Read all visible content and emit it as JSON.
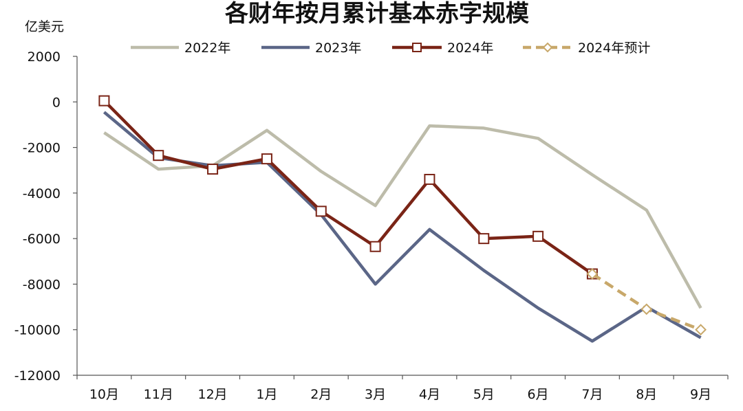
{
  "chart_data": {
    "type": "line",
    "title": "各财年按月累计基本赤字规模",
    "unit_label": "亿美元",
    "categories": [
      "10月",
      "11月",
      "12月",
      "1月",
      "2月",
      "3月",
      "4月",
      "5月",
      "6月",
      "7月",
      "8月",
      "9月"
    ],
    "y_ticks": [
      "2000",
      "0",
      "-2000",
      "-4000",
      "-6000",
      "-8000",
      "-10000",
      "-12000"
    ],
    "ylim": [
      -12000,
      2000
    ],
    "y_tick_values": [
      2000,
      0,
      -2000,
      -4000,
      -6000,
      -8000,
      -10000,
      -12000
    ],
    "grid": false,
    "legend_position": "top",
    "series": [
      {
        "name": "2022年",
        "color": "#bdbcaa",
        "style": "solid",
        "marker": "none",
        "values": [
          -1350,
          -2950,
          -2800,
          -1250,
          -3050,
          -4550,
          -1050,
          -1150,
          -1600,
          -3200,
          -4750,
          -9050
        ]
      },
      {
        "name": "2023年",
        "color": "#5b6687",
        "style": "solid",
        "marker": "none",
        "values": [
          -450,
          -2450,
          -2800,
          -2650,
          -4950,
          -8000,
          -5600,
          -7400,
          -9050,
          -10500,
          -9000,
          -10350
        ]
      },
      {
        "name": "2024年",
        "color": "#7a2416",
        "style": "solid",
        "marker": "square",
        "values": [
          50,
          -2350,
          -2950,
          -2500,
          -4800,
          -6350,
          -3400,
          -6000,
          -5900,
          -7550,
          null,
          null
        ]
      },
      {
        "name": "2024年预计",
        "color": "#c8a86a",
        "style": "dashed",
        "marker": "diamond",
        "values": [
          null,
          null,
          null,
          null,
          null,
          null,
          null,
          null,
          null,
          -7550,
          -9100,
          -10000
        ]
      }
    ]
  }
}
